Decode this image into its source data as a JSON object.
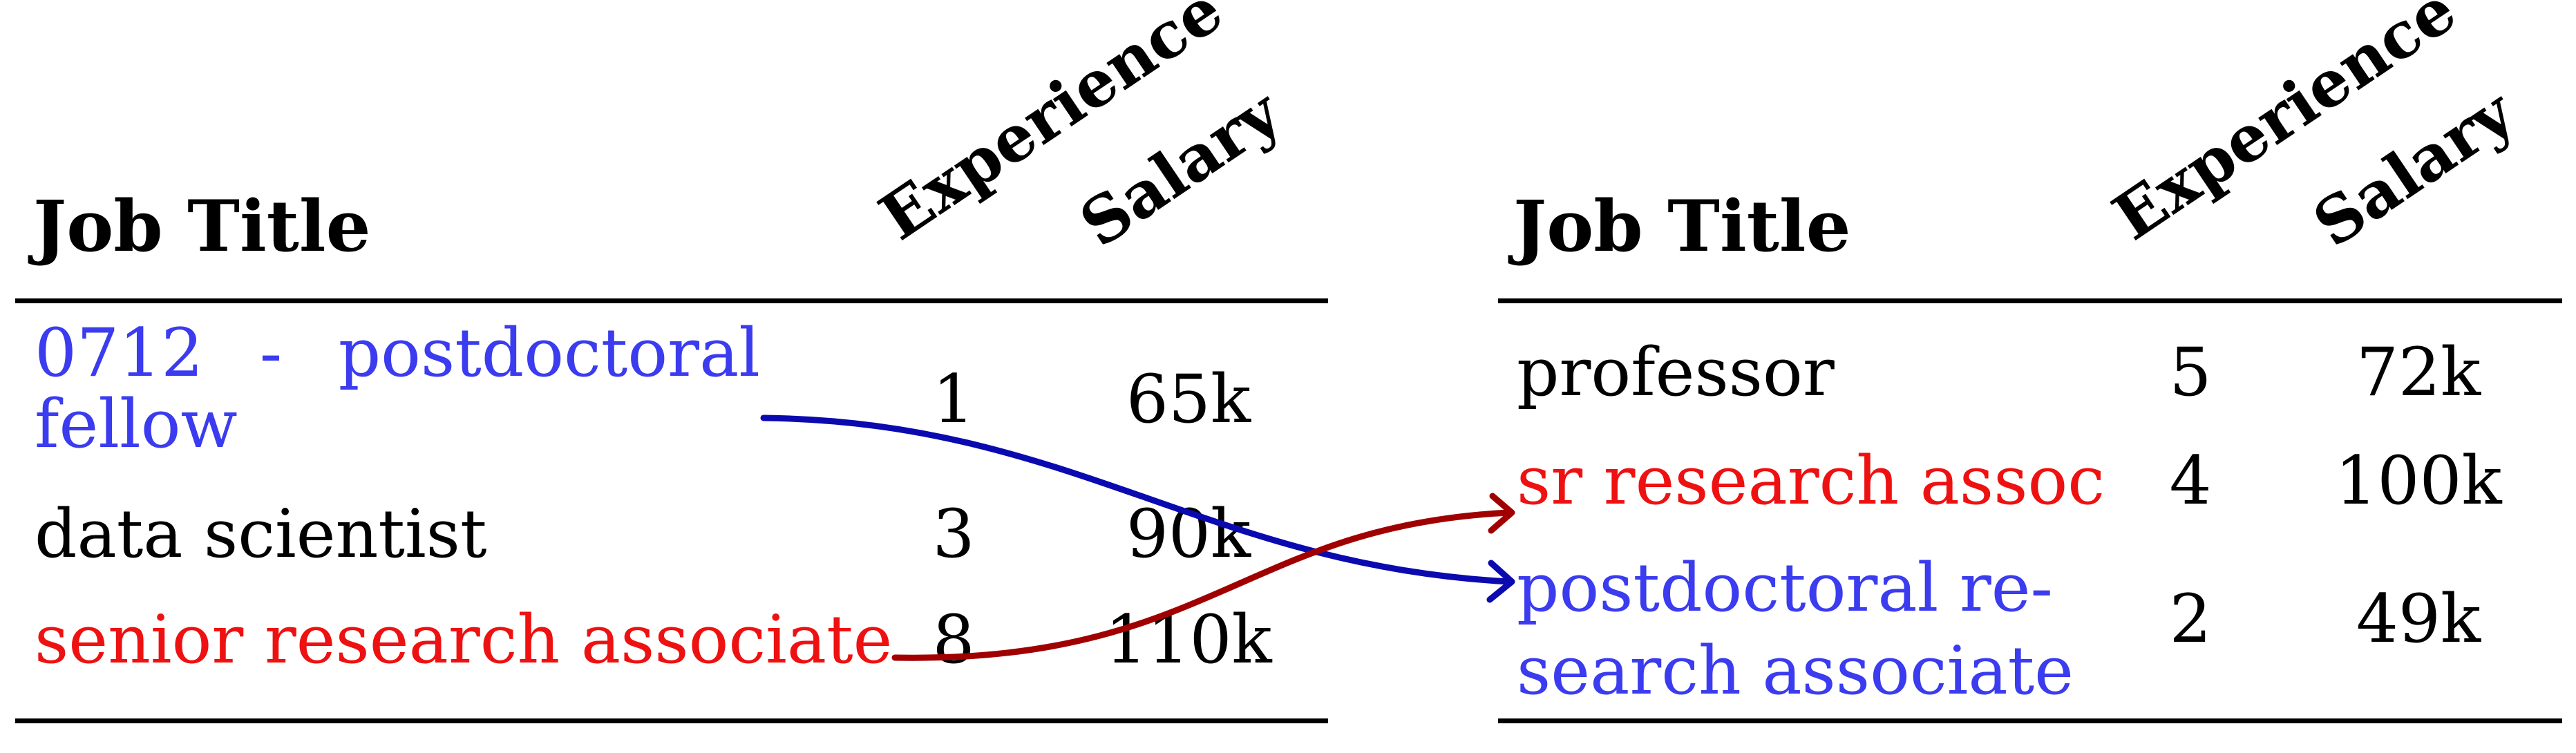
{
  "colors": {
    "blue_text": "#3b3bef",
    "red_text": "#ee1111",
    "blue_arrow": "#0a0ab0",
    "red_arrow": "#a00000"
  },
  "left_table": {
    "headers": {
      "job_title": "Job Title",
      "experience": "Experience",
      "salary": "Salary"
    },
    "rows": [
      {
        "title": "0712 - postdoctoral fellow",
        "experience": "1",
        "salary": "65k",
        "highlight": "blue"
      },
      {
        "title": "data scientist",
        "experience": "3",
        "salary": "90k",
        "highlight": "none"
      },
      {
        "title": "senior research associate",
        "experience": "8",
        "salary": "110k",
        "highlight": "red"
      }
    ]
  },
  "right_table": {
    "headers": {
      "job_title": "Job Title",
      "experience": "Experience",
      "salary": "Salary"
    },
    "rows": [
      {
        "title": "professor",
        "experience": "5",
        "salary": "72k",
        "highlight": "none"
      },
      {
        "title": "sr research assoc",
        "experience": "4",
        "salary": "100k",
        "highlight": "red"
      },
      {
        "title_line1": "postdoctoral re-",
        "title_line2": "search associate",
        "experience": "2",
        "salary": "49k",
        "highlight": "blue"
      }
    ]
  },
  "arrows": [
    {
      "from": "0712 - postdoctoral fellow",
      "to": "postdoctoral research associate",
      "color": "blue"
    },
    {
      "from": "senior research associate",
      "to": "sr research assoc",
      "color": "red"
    }
  ]
}
